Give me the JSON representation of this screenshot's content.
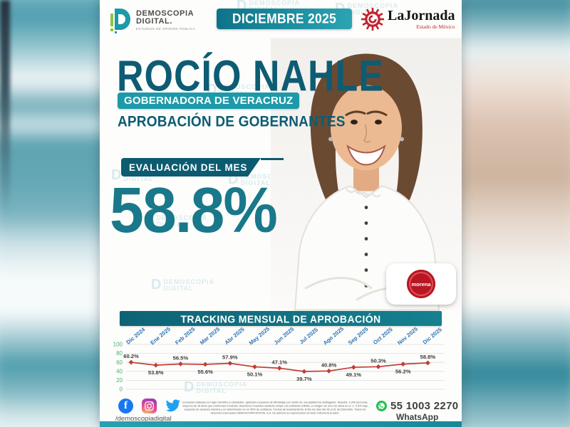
{
  "poster": {
    "header": {
      "logo": {
        "line1": "DEMOSCOPIA",
        "line2": "DIGITAL.",
        "tagline": "ESTUDIOS DE OPINIÓN PÚBLICA"
      },
      "date_banner": "DICIEMBRE 2025",
      "jornada": {
        "brand": "LaJornada",
        "edition": "Estado de México"
      }
    },
    "hero": {
      "title": "ROCÍO NAHLE",
      "role_badge": "GOBERNADORA DE VERACRUZ",
      "section": "APROBACIÓN DE GOBERNANTES",
      "eval_label": "EVALUACIÓN DEL MES",
      "eval_value": "58.8%",
      "party_badge": "morena"
    },
    "footer": {
      "social_handle": "/demoscopiadigital",
      "disclaimer": "Encuesta realizada con rigor científico y estadístico, aplicada a usuarios de WhatsApp por medio de una plataforma multiagente. Muestra: 1,000 personas mayores de 18 años que conforman el Estado. Asumimos muestreo aleatorio simple con población infinita, el margen de error se ubica en el +/- 3.5% bajo supuesto de varianza máxima y un determinado en un 95% de confianza. Fechas de levantamiento: Entre los días del 28 al 31 de Diciembre. Todos los derechos reservados DEMOSCOPIA DIGITAL S.A. Se autoriza su reproducción al hacer referencia al autor.",
      "whatsapp_number": "55 1003 2270",
      "whatsapp_label": "WhatsApp"
    },
    "watermark": {
      "d": "D",
      "line1": "DEMOSCOPIA",
      "line2": "DIGITAL"
    },
    "colors": {
      "teal_dark": "#0d5c73",
      "teal_badge": "#1d9aaa",
      "eval_teal": "#19788a",
      "jornada_red": "#c0242e",
      "morena_red": "#b91623",
      "whatsapp_green": "#22bf4e"
    }
  },
  "chart_data": {
    "type": "line",
    "title": "TRACKING MENSUAL DE APROBACIÓN",
    "categories": [
      "Dic 2024",
      "Ene 2025",
      "Feb 2025",
      "Mar 2025",
      "Abr 2025",
      "May 2025",
      "Jun 2025",
      "Jul 2025",
      "Ago 2025",
      "Sep 2025",
      "Oct 2025",
      "Nov 2025",
      "Dic 2025"
    ],
    "values": [
      60.2,
      53.8,
      56.5,
      55.6,
      57.9,
      50.1,
      47.1,
      39.7,
      40.8,
      49.1,
      50.3,
      56.2,
      58.8
    ],
    "point_labels": [
      "60.2%",
      "53.8%",
      "56.5%",
      "55.6%",
      "57.9%",
      "50.1%",
      "47.1%",
      "39.7%",
      "40.8%",
      "49.1%",
      "50.3%",
      "56.2%",
      "58.8%"
    ],
    "xlabel": "",
    "ylabel": "",
    "ylim": [
      0,
      100
    ],
    "yticks": [
      0,
      20,
      40,
      60,
      80,
      100
    ],
    "grid": true,
    "legend": "none",
    "line_color": "#c23b32",
    "marker": "diamond",
    "ytick_color": "#4cae74",
    "xtick_color": "#2e74b5",
    "label_color": "#3b3b3b"
  }
}
